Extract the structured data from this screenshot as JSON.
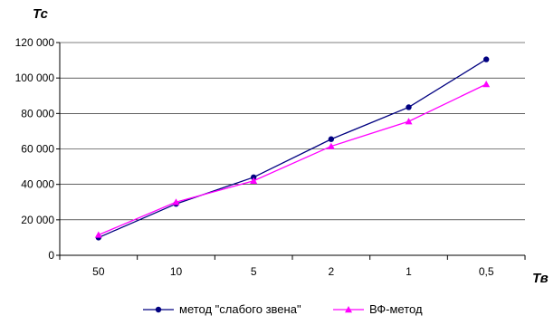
{
  "chart_data": {
    "type": "line",
    "title": "",
    "xlabel": "Тв",
    "ylabel": "Тс",
    "categories": [
      "50",
      "10",
      "5",
      "2",
      "1",
      "0,5"
    ],
    "ylim": [
      0,
      120000
    ],
    "yticks": [
      0,
      20000,
      40000,
      60000,
      80000,
      100000,
      120000
    ],
    "ytick_labels": [
      "0",
      "20 000",
      "40 000",
      "60 000",
      "80 000",
      "100 000",
      "120 000"
    ],
    "grid": "horizontal major",
    "legend_position": "bottom",
    "series": [
      {
        "name": "метод \"слабого звена\"",
        "values": [
          10000,
          29000,
          44000,
          65500,
          83500,
          110500
        ],
        "color": "#000080",
        "marker": "circle"
      },
      {
        "name": "ВФ-метод",
        "values": [
          11500,
          30000,
          42000,
          61500,
          75500,
          96500
        ],
        "color": "#ff00ff",
        "marker": "triangle"
      }
    ]
  }
}
